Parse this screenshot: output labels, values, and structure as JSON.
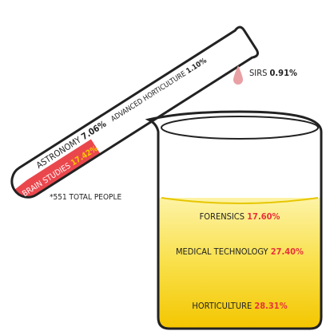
{
  "test_tube": {
    "items": [
      {
        "label": "BRAIN STUDIES",
        "value": "17.42%"
      },
      {
        "label": "ASTRONOMY",
        "value": "7.06%"
      },
      {
        "label": "ADVANCED HORTICULTURE",
        "value": "1.10%"
      }
    ]
  },
  "drop": {
    "label": "SIRS",
    "value": "0.91%"
  },
  "note": "*551 TOTAL PEOPLE",
  "beaker": {
    "items": [
      {
        "label": "FORENSICS",
        "value": "17.60%"
      },
      {
        "label": "MEDICAL TECHNOLOGY",
        "value": "27.40%"
      },
      {
        "label": "HORTICULTURE",
        "value": "28.31%"
      }
    ]
  }
}
